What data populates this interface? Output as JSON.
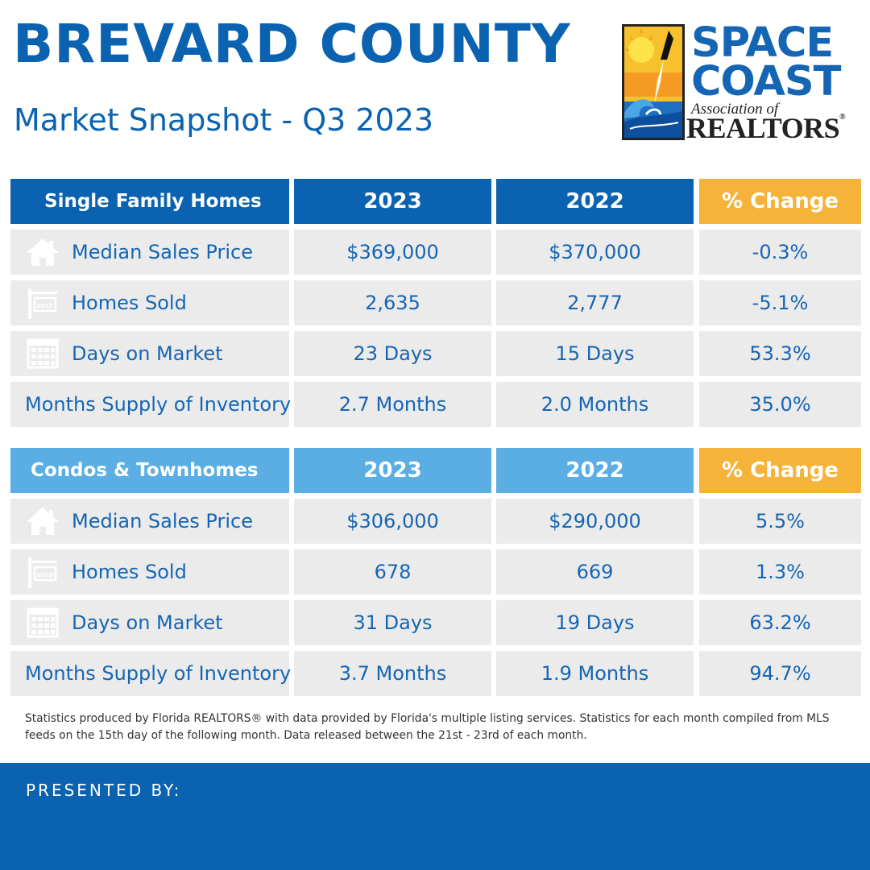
{
  "header": {
    "title": "BREVARD COUNTY",
    "subtitle": "Market Snapshot - Q3 2023"
  },
  "logo": {
    "line1": "SPACE",
    "line2": "COAST",
    "line3": "Association of",
    "line4": "REALTORS",
    "reg": "®"
  },
  "tables": [
    {
      "heading": "Single Family Homes",
      "col_2023": "2023",
      "col_2022": "2022",
      "col_change": "% Change",
      "rows": [
        {
          "label": "Median Sales Price",
          "icon": "house-icon",
          "v2023": "$369,000",
          "v2022": "$370,000",
          "change": "-0.3%"
        },
        {
          "label": "Homes Sold",
          "icon": "sold-sign-icon",
          "v2023": "2,635",
          "v2022": "2,777",
          "change": "-5.1%"
        },
        {
          "label": "Days on Market",
          "icon": "calendar-icon",
          "v2023": "23 Days",
          "v2022": "15 Days",
          "change": "53.3%"
        },
        {
          "label": "Months Supply of Inventory",
          "v2023": "2.7 Months",
          "v2022": "2.0 Months",
          "change": "35.0%"
        }
      ]
    },
    {
      "heading": "Condos & Townhomes",
      "col_2023": "2023",
      "col_2022": "2022",
      "col_change": "% Change",
      "rows": [
        {
          "label": "Median Sales Price",
          "icon": "house-icon",
          "v2023": "$306,000",
          "v2022": "$290,000",
          "change": "5.5%"
        },
        {
          "label": "Homes Sold",
          "icon": "sold-sign-icon",
          "v2023": "678",
          "v2022": "669",
          "change": "1.3%"
        },
        {
          "label": "Days on Market",
          "icon": "calendar-icon",
          "v2023": "31 Days",
          "v2022": "19 Days",
          "change": "63.2%"
        },
        {
          "label": "Months Supply of Inventory",
          "v2023": "3.7 Months",
          "v2022": "1.9 Months",
          "change": "94.7%"
        }
      ]
    }
  ],
  "icons": {
    "sold_text": "SOLD"
  },
  "footnote": "Statistics produced by Florida REALTORS® with data provided by Florida's multiple listing services. Statistics for each month compiled from MLS feeds on the 15th day of the following month. Data released between the 21st - 23rd of each month.",
  "footer": {
    "presented_by": "PRESENTED BY:"
  },
  "colors": {
    "brand_blue": "#0a62b0",
    "light_blue": "#5aaee3",
    "accent_orange": "#f6b33a",
    "row_gray": "#ebebeb"
  }
}
